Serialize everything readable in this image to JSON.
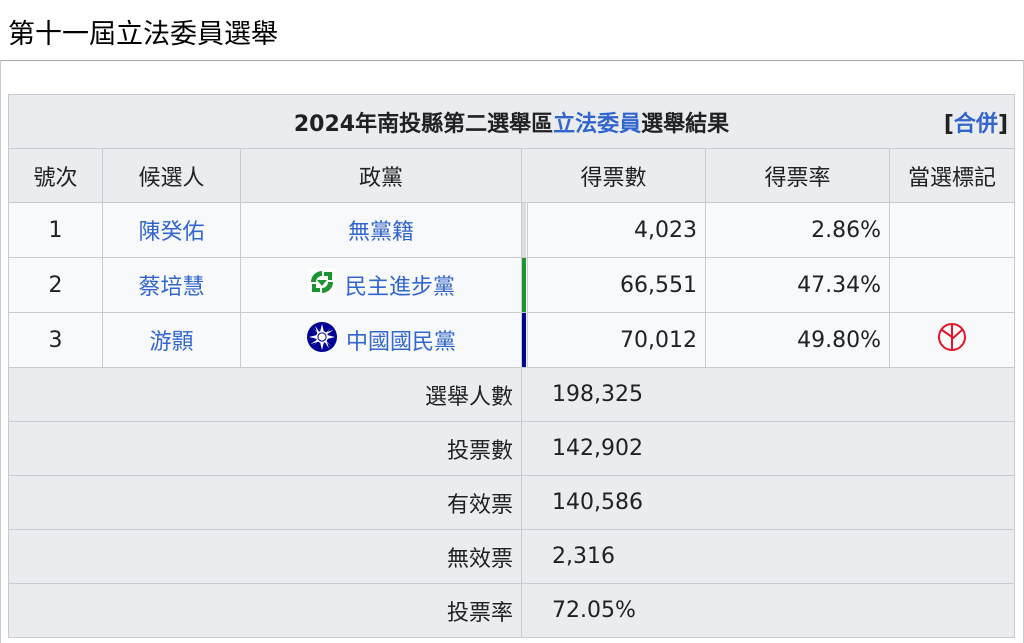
{
  "section": {
    "heading": "第十一屆立法委員選舉"
  },
  "table": {
    "caption_prefix": "2024年南投縣第二選舉區",
    "caption_link": "立法委員",
    "caption_suffix": "選舉結果",
    "merge_open": "[",
    "merge_label": "合併",
    "merge_close": "]",
    "headers": [
      "號次",
      "候選人",
      "政黨",
      "得票數",
      "得票率",
      "當選標記"
    ],
    "candidates": [
      {
        "number": "1",
        "name": "陳癸佑",
        "party": "無黨籍",
        "party_icon": "",
        "party_color": "#dddddd",
        "votes": "4,023",
        "rate": "2.86%",
        "elected": false
      },
      {
        "number": "2",
        "name": "蔡培慧",
        "party": "民主進步黨",
        "party_icon": "dpp-logo-icon",
        "party_color": "#1b9431",
        "votes": "66,551",
        "rate": "47.34%",
        "elected": false
      },
      {
        "number": "3",
        "name": "游顥",
        "party": "中國國民黨",
        "party_icon": "kmt-logo-icon",
        "party_color": "#000095",
        "votes": "70,012",
        "rate": "49.80%",
        "elected": true,
        "elected_icon": "elected-stamp-icon"
      }
    ],
    "stats": [
      {
        "label": "選舉人數",
        "value": "198,325"
      },
      {
        "label": "投票數",
        "value": "142,902"
      },
      {
        "label": "有效票",
        "value": "140,586"
      },
      {
        "label": "無效票",
        "value": "2,316"
      },
      {
        "label": "投票率",
        "value": "72.05%"
      }
    ]
  }
}
